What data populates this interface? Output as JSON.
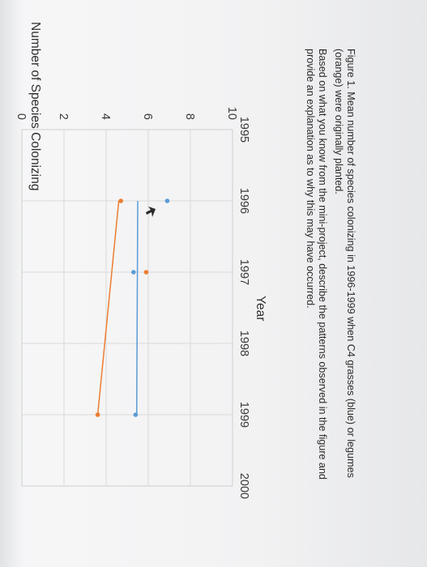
{
  "chart_data": {
    "type": "scatter",
    "ylabel": "Number of Species Colonizing",
    "xlabel": "Year",
    "xlim": [
      1995,
      2000
    ],
    "ylim": [
      0,
      10
    ],
    "xticks": [
      "1995",
      "1996",
      "1997",
      "1998",
      "1999",
      "2000"
    ],
    "yticks": [
      "0",
      "2",
      "4",
      "6",
      "8",
      "10"
    ],
    "grid": true,
    "series": [
      {
        "name": "C4 grasses",
        "color": "#5b9bd5",
        "points": [
          {
            "x": 1996,
            "y": 6.9
          },
          {
            "x": 1997,
            "y": 5.3
          },
          {
            "x": 1999,
            "y": 5.4
          }
        ],
        "trendline": [
          {
            "x": 1996,
            "y": 5.5
          },
          {
            "x": 1999,
            "y": 5.45
          }
        ]
      },
      {
        "name": "legumes",
        "color": "#ed7d31",
        "points": [
          {
            "x": 1996,
            "y": 4.7
          },
          {
            "x": 1997,
            "y": 5.9
          },
          {
            "x": 1999,
            "y": 3.6
          }
        ],
        "trendline": [
          {
            "x": 1996,
            "y": 4.6
          },
          {
            "x": 1999,
            "y": 3.6
          }
        ]
      }
    ]
  },
  "caption": {
    "figure": "Figure 1. Mean number of species colonizing in 1996-1999 when C4 grasses (blue) or legumes (orange) were originally planted.",
    "question": "Based on what you know from the mini-project, describe the patterns observed in the figure and provide an explanation as to why this may have occurred."
  }
}
